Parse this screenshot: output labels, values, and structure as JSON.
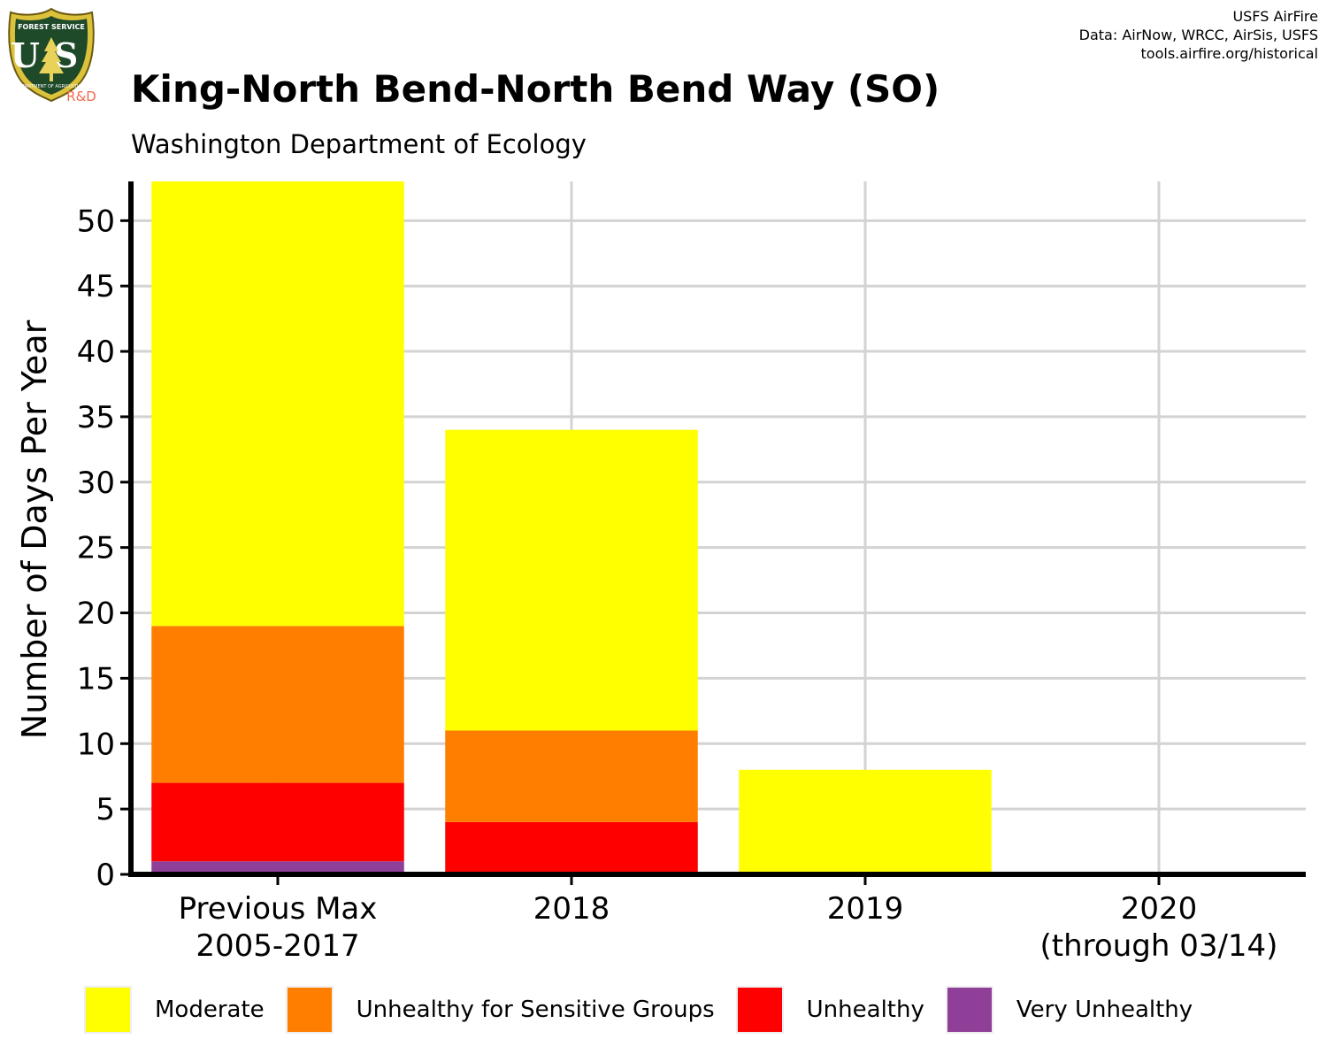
{
  "header": {
    "title": "King-North Bend-North Bend Way (SO)",
    "subtitle": "Washington Department of Ecology",
    "credits": [
      "USFS AirFire",
      "Data: AirNow, WRCC, AirSis, USFS",
      "tools.airfire.org/historical"
    ]
  },
  "logo": {
    "icon": "usfs-shield-icon",
    "arc_text": "FOREST SERVICE",
    "letters": "US",
    "bottom_text": "DEPARTMENT OF AGRICULTURE",
    "badge": "R&D"
  },
  "colors": {
    "moderate": "#ffff00",
    "usg": "#ff7e00",
    "unhealthy": "#ff0000",
    "very_unhealthy": "#8f3f97",
    "grid": "#d3d3d3",
    "axis": "#000000",
    "badge": "#f26a4f"
  },
  "chart_data": {
    "type": "bar",
    "stacked": true,
    "ylabel": "Number of Days Per Year",
    "xlabel": "",
    "ylim": [
      0,
      53
    ],
    "yticks": [
      0,
      5,
      10,
      15,
      20,
      25,
      30,
      35,
      40,
      45,
      50
    ],
    "grid": true,
    "legend_position": "bottom",
    "categories": [
      [
        "Previous Max",
        "2005-2017"
      ],
      [
        "2018"
      ],
      [
        "2019"
      ],
      [
        "2020",
        "(through 03/14)"
      ]
    ],
    "series": [
      {
        "name": "Very Unhealthy",
        "color": "#8f3f97",
        "values": [
          1,
          0,
          0,
          0
        ]
      },
      {
        "name": "Unhealthy",
        "color": "#ff0000",
        "values": [
          6,
          4,
          0,
          0
        ]
      },
      {
        "name": "Unhealthy for Sensitive Groups",
        "color": "#ff7e00",
        "values": [
          12,
          7,
          0,
          0
        ]
      },
      {
        "name": "Moderate",
        "color": "#ffff00",
        "values": [
          34,
          23,
          8,
          0
        ]
      }
    ]
  },
  "legend": [
    {
      "label": "Moderate",
      "color": "#ffff00"
    },
    {
      "label": "Unhealthy for Sensitive Groups",
      "color": "#ff7e00"
    },
    {
      "label": "Unhealthy",
      "color": "#ff0000"
    },
    {
      "label": "Very Unhealthy",
      "color": "#8f3f97"
    }
  ]
}
